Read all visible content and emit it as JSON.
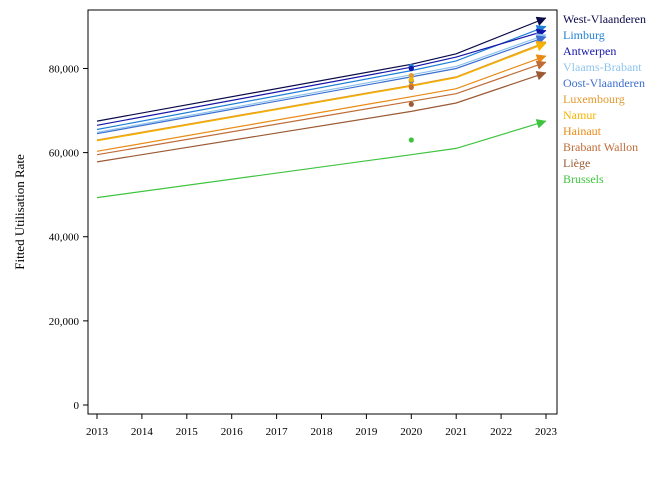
{
  "chart_data": {
    "type": "line",
    "title": "",
    "xlabel": "",
    "ylabel": "Fitted Utilisation Rate",
    "x": [
      2013,
      2014,
      2015,
      2016,
      2017,
      2018,
      2019,
      2020,
      2021,
      2022,
      2023
    ],
    "xlim": [
      2013,
      2023
    ],
    "ylim": [
      0,
      92000
    ],
    "y_ticks": [
      0,
      20000,
      40000,
      60000,
      80000
    ],
    "y_tick_labels": [
      "0",
      "20,000",
      "40,000",
      "60,000",
      "80,000"
    ],
    "x_tick_labels": [
      "2013",
      "2014",
      "2015",
      "2016",
      "2017",
      "2018",
      "2019",
      "2020",
      "2021",
      "2022",
      "2023"
    ],
    "grid": false,
    "legend_position": "right",
    "series": [
      {
        "name": "West-Vlaanderen",
        "color": "#0b0b4a",
        "line_x": [
          2013,
          2020,
          2021,
          2023
        ],
        "line_y": [
          67500,
          81000,
          83500,
          92000
        ],
        "observed": {
          "x": 2020,
          "y": 80300
        }
      },
      {
        "name": "Limburg",
        "color": "#1e7fd6",
        "line_x": [
          2013,
          2020,
          2021,
          2023
        ],
        "line_y": [
          65500,
          79500,
          81800,
          90000
        ],
        "observed": {
          "x": 2020,
          "y": 80500
        }
      },
      {
        "name": "Antwerpen",
        "color": "#1515a8",
        "line_x": [
          2013,
          2020,
          2021,
          2023
        ],
        "line_y": [
          66500,
          80300,
          82700,
          89000
        ],
        "observed": {
          "x": 2020,
          "y": 80000
        }
      },
      {
        "name": "Vlaams-Brabant",
        "color": "#8fc4ee",
        "line_x": [
          2013,
          2020,
          2021,
          2023
        ],
        "line_y": [
          64800,
          78500,
          80500,
          88000
        ],
        "observed": {
          "x": 2020,
          "y": 78000
        }
      },
      {
        "name": "Oost-Vlaanderen",
        "color": "#3d6fd1",
        "line_x": [
          2013,
          2020,
          2021,
          2023
        ],
        "line_y": [
          64500,
          78000,
          80000,
          87500
        ],
        "observed": {
          "x": 2020,
          "y": 77000
        }
      },
      {
        "name": "Luxembourg",
        "color": "#e29a2c",
        "line_x": [
          2013,
          2020,
          2021,
          2023
        ],
        "line_y": [
          63000,
          76000,
          78000,
          86300
        ],
        "observed": {
          "x": 2020,
          "y": 78300
        }
      },
      {
        "name": "Namur",
        "color": "#f5b400",
        "line_x": [
          2013,
          2020,
          2021,
          2023
        ],
        "line_y": [
          62800,
          75800,
          77800,
          86000
        ],
        "observed": {
          "x": 2020,
          "y": 77300
        }
      },
      {
        "name": "Hainaut",
        "color": "#e98a13",
        "line_x": [
          2013,
          2020,
          2021,
          2023
        ],
        "line_y": [
          60300,
          73300,
          75200,
          83000
        ],
        "observed": {
          "x": 2020,
          "y": 76000
        }
      },
      {
        "name": "Brabant Wallon",
        "color": "#bf6d38",
        "line_x": [
          2013,
          2020,
          2021,
          2023
        ],
        "line_y": [
          59500,
          72200,
          74000,
          81500
        ],
        "observed": {
          "x": 2020,
          "y": 75500
        }
      },
      {
        "name": "Liège",
        "color": "#9c5a34",
        "line_x": [
          2013,
          2020,
          2021,
          2023
        ],
        "line_y": [
          57800,
          69800,
          71800,
          79000
        ],
        "observed": {
          "x": 2020,
          "y": 71500
        }
      },
      {
        "name": "Brussels",
        "color": "#3fc43f",
        "line_x": [
          2013,
          2020,
          2021,
          2023
        ],
        "line_y": [
          49300,
          59500,
          61000,
          67500
        ],
        "observed": {
          "x": 2020,
          "y": 63000
        }
      }
    ]
  }
}
